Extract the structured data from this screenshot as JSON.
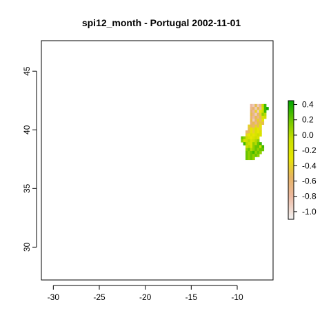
{
  "title": "spi12_month - Portugal 2002-11-01",
  "map": {
    "x_ticks": [
      -30,
      -25,
      -20,
      -15,
      -10
    ],
    "y_ticks": [
      30,
      35,
      40,
      45
    ],
    "x_range": [
      -31.3,
      -6.1
    ],
    "y_range": [
      27.2,
      47.6
    ],
    "grid": false
  },
  "legend": {
    "placement": "right",
    "ticks": [
      "0.4",
      "0.2",
      "0.0",
      "-0.2",
      "-0.4",
      "-0.6",
      "-0.8",
      "-1.0"
    ],
    "tick_values": [
      0.4,
      0.2,
      0.0,
      -0.2,
      -0.4,
      -0.6,
      -0.8,
      -1.0
    ],
    "range": [
      -1.1,
      0.45
    ],
    "colormap": "terrain (reversed)",
    "color_stops": [
      {
        "v": -1.1,
        "c": "#f2f2f2"
      },
      {
        "v": -0.8,
        "c": "#ecb8a0"
      },
      {
        "v": -0.55,
        "c": "#e6b363"
      },
      {
        "v": -0.3,
        "c": "#e6e600"
      },
      {
        "v": -0.05,
        "c": "#c8df00"
      },
      {
        "v": 0.15,
        "c": "#7ecb00"
      },
      {
        "v": 0.45,
        "c": "#00a600"
      }
    ]
  },
  "raster": {
    "region": "Portugal",
    "date": "2002-11-01",
    "origin": {
      "lon": -9.6,
      "lat": 42.2
    },
    "cell_deg": 0.25,
    "rows": [
      {
        "c0": 4,
        "v": [
          -0.8,
          -0.9,
          -0.5,
          -0.9,
          -0.7,
          -0.1,
          0.3
        ]
      },
      {
        "c0": 4,
        "v": [
          -0.7,
          -0.6,
          -0.9,
          -0.5,
          -0.8,
          -0.2,
          0.3,
          0.4
        ]
      },
      {
        "c0": 4,
        "v": [
          -0.6,
          -0.8,
          -0.4,
          -0.9,
          -0.3,
          -0.1,
          0.3
        ]
      },
      {
        "c0": 4,
        "v": [
          -0.5,
          -0.7,
          -0.9,
          -0.6,
          -0.4,
          0.1,
          0.0
        ]
      },
      {
        "c0": 4,
        "v": [
          -0.6,
          -0.8,
          -0.5,
          -0.7,
          -0.5,
          -0.2,
          -0.1
        ]
      },
      {
        "c0": 4,
        "v": [
          -0.5,
          -0.9,
          -0.6,
          -0.4,
          -0.6,
          -0.3
        ]
      },
      {
        "c0": 4,
        "v": [
          -0.6,
          -0.5,
          -0.7,
          -0.5,
          -0.4,
          -0.5
        ]
      },
      {
        "c0": 3,
        "v": [
          -0.4,
          -0.5,
          -0.6,
          -0.4,
          -0.5,
          -0.3
        ]
      },
      {
        "c0": 3,
        "v": [
          -0.5,
          -0.3,
          -0.4,
          -0.2,
          -0.3,
          -0.4
        ]
      },
      {
        "c0": 2,
        "v": [
          -0.6,
          -0.5,
          -0.3,
          -0.4,
          -0.2,
          -0.3,
          -0.2
        ]
      },
      {
        "c0": 2,
        "v": [
          -0.4,
          -0.3,
          -0.2,
          -0.3,
          -0.2,
          -0.1,
          -0.2
        ]
      },
      {
        "c0": 0,
        "v": [
          0.2,
          0.1,
          -0.1,
          -0.2,
          -0.3,
          -0.2,
          -0.1,
          -0.2
        ]
      },
      {
        "c0": 0,
        "v": [
          0.1,
          -0.2,
          -0.1,
          0.0,
          -0.2,
          -0.1,
          0.0,
          0.1
        ]
      },
      {
        "c0": 1,
        "v": [
          0.3,
          0.0,
          -0.1,
          -0.2,
          0.1,
          0.0,
          0.2,
          0.3
        ]
      },
      {
        "c0": 2,
        "v": [
          -0.1,
          0.0,
          -0.2,
          0.1,
          0.2,
          0.2,
          -0.1,
          0.3
        ]
      },
      {
        "c0": 2,
        "v": [
          0.1,
          0.2,
          0.0,
          0.1,
          0.2,
          0.1,
          0.2,
          0.2
        ]
      },
      {
        "c0": 2,
        "v": [
          0.2,
          0.1,
          0.2,
          0.3,
          0.1,
          0.2,
          0.1
        ]
      },
      {
        "c0": 2,
        "v": [
          0.2,
          0.1,
          0.2,
          0.1,
          0.2,
          0.1
        ]
      },
      {
        "c0": 2,
        "v": [
          0.2,
          0.1,
          0.2,
          0.1
        ]
      }
    ]
  }
}
